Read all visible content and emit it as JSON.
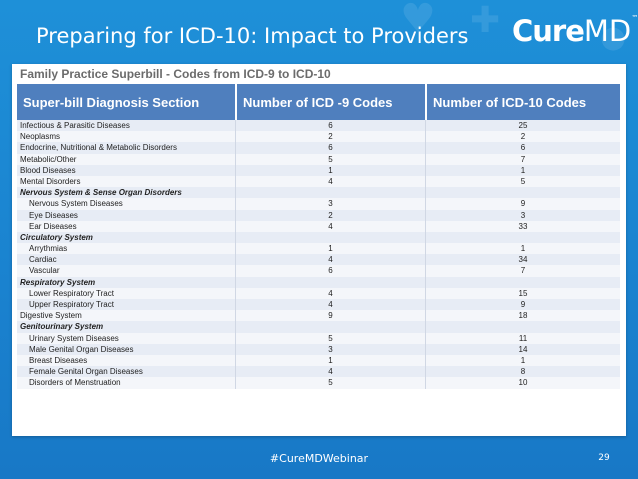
{
  "slide": {
    "title": "Preparing for ICD-10: Impact to Providers",
    "logo": {
      "cure": "Cure",
      "md": "MD",
      "tm": "™"
    },
    "hashtag": "#CureMDWebinar",
    "page_number": "29"
  },
  "table": {
    "caption": "Family Practice Superbill - Codes from ICD-9 to ICD-10",
    "headers": [
      "Super-bill Diagnosis Section",
      "Number of ICD -9 Codes",
      "Number of ICD-10 Codes"
    ],
    "rows": [
      {
        "label": "Infectious & Parasitic Diseases",
        "icd9": "6",
        "icd10": "25",
        "type": "normal"
      },
      {
        "label": "Neoplasms",
        "icd9": "2",
        "icd10": "2",
        "type": "normal"
      },
      {
        "label": "Endocrine, Nutritional & Metabolic Disorders",
        "icd9": "6",
        "icd10": "6",
        "type": "normal"
      },
      {
        "label": "Metabolic/Other",
        "icd9": "5",
        "icd10": "7",
        "type": "normal"
      },
      {
        "label": "Blood Diseases",
        "icd9": "1",
        "icd10": "1",
        "type": "normal"
      },
      {
        "label": "Mental Disorders",
        "icd9": "4",
        "icd10": "5",
        "type": "normal"
      },
      {
        "label": "Nervous System & Sense Organ Disorders",
        "icd9": "",
        "icd10": "",
        "type": "section"
      },
      {
        "label": "Nervous System Diseases",
        "icd9": "3",
        "icd10": "9",
        "type": "indent"
      },
      {
        "label": "Eye Diseases",
        "icd9": "2",
        "icd10": "3",
        "type": "indent"
      },
      {
        "label": "Ear Diseases",
        "icd9": "4",
        "icd10": "33",
        "type": "indent"
      },
      {
        "label": "Circulatory System",
        "icd9": "",
        "icd10": "",
        "type": "section"
      },
      {
        "label": "Arrythmias",
        "icd9": "1",
        "icd10": "1",
        "type": "indent"
      },
      {
        "label": "Cardiac",
        "icd9": "4",
        "icd10": "34",
        "type": "indent"
      },
      {
        "label": "Vascular",
        "icd9": "6",
        "icd10": "7",
        "type": "indent"
      },
      {
        "label": "Respiratory System",
        "icd9": "",
        "icd10": "",
        "type": "section"
      },
      {
        "label": "Lower Respiratory Tract",
        "icd9": "4",
        "icd10": "15",
        "type": "indent"
      },
      {
        "label": "Upper Respiratory Tract",
        "icd9": "4",
        "icd10": "9",
        "type": "indent"
      },
      {
        "label": "Digestive System",
        "icd9": "9",
        "icd10": "18",
        "type": "normal"
      },
      {
        "label": "Genitourinary System",
        "icd9": "",
        "icd10": "",
        "type": "section"
      },
      {
        "label": "Urinary System Diseases",
        "icd9": "5",
        "icd10": "11",
        "type": "indent"
      },
      {
        "label": "Male Genital Organ Diseases",
        "icd9": "3",
        "icd10": "14",
        "type": "indent"
      },
      {
        "label": "Breast Diseases",
        "icd9": "1",
        "icd10": "1",
        "type": "indent"
      },
      {
        "label": "Female Genital Organ Diseases",
        "icd9": "4",
        "icd10": "8",
        "type": "indent"
      },
      {
        "label": "Disorders of Menstruation",
        "icd9": "5",
        "icd10": "10",
        "type": "indent"
      }
    ]
  },
  "colors": {
    "background": "#1e90d8",
    "header_fill": "#4f7fbe",
    "row_light": "#e7ecf5"
  },
  "icons": {
    "background_decor": [
      "heart-icon",
      "pill-icon",
      "cross-icon"
    ],
    "page_badge": "cloud-icon"
  }
}
